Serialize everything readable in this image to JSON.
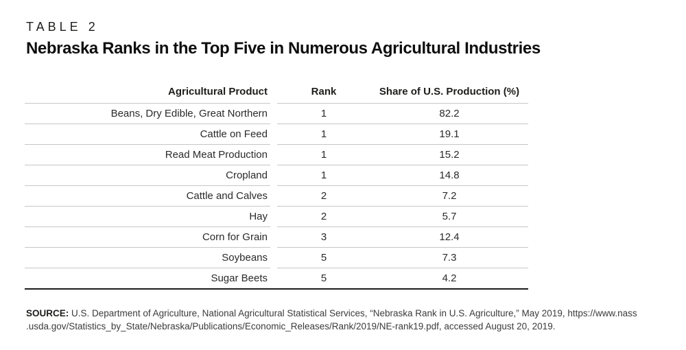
{
  "eyebrow": "TABLE 2",
  "title": "Nebraska Ranks in the Top Five in Numerous Agricultural Industries",
  "table": {
    "columns": {
      "product": "Agricultural Product",
      "rank": "Rank",
      "share": "Share of U.S. Production (%)"
    },
    "rows": [
      {
        "product": "Beans, Dry Edible, Great Northern",
        "rank": "1",
        "share": "82.2"
      },
      {
        "product": "Cattle on Feed",
        "rank": "1",
        "share": "19.1"
      },
      {
        "product": "Read Meat Production",
        "rank": "1",
        "share": "15.2"
      },
      {
        "product": "Cropland",
        "rank": "1",
        "share": "14.8"
      },
      {
        "product": "Cattle and Calves",
        "rank": "2",
        "share": "7.2"
      },
      {
        "product": "Hay",
        "rank": "2",
        "share": "5.7"
      },
      {
        "product": "Corn for Grain",
        "rank": "3",
        "share": "12.4"
      },
      {
        "product": "Soybeans",
        "rank": "5",
        "share": "7.3"
      },
      {
        "product": "Sugar Beets",
        "rank": "5",
        "share": "4.2"
      }
    ]
  },
  "source": {
    "label": "SOURCE:",
    "line1": "U.S. Department of Agriculture, National Agricultural Statistical Services, “Nebraska Rank in U.S. Agriculture,” May 2019, https://www.nass",
    "line2": ".usda.gov/Statistics_by_State/Nebraska/Publications/Economic_Releases/Rank/2019/NE-rank19.pdf, accessed August 20, 2019."
  },
  "colors": {
    "text": "#231f20",
    "title": "#0e0e0e",
    "row_rule": "#c6c6c6",
    "bottom_rule": "#1c1c1c",
    "background": "#ffffff"
  }
}
